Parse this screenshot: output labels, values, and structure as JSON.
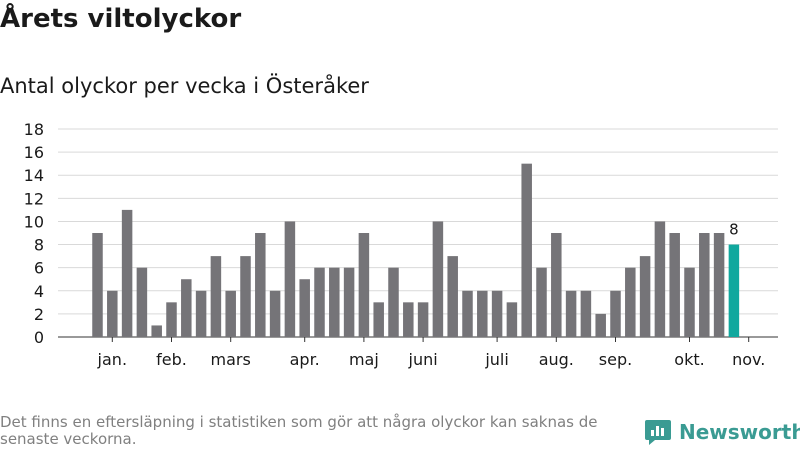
{
  "header": {
    "title": "Årets viltolyckor",
    "subtitle": "Antal olyckor per vecka i Österåker"
  },
  "footer": {
    "note": "Det finns en eftersläpning i statistiken som gör att några olyckor kan saknas de senaste veckorna.",
    "brand": "Newsworthy"
  },
  "colors": {
    "bar": "#757478",
    "highlight": "#10a89e",
    "grid": "#d9d9d9",
    "brand": "#3a9b93"
  },
  "chart_data": {
    "type": "bar",
    "values": [
      9,
      4,
      11,
      6,
      1,
      3,
      5,
      4,
      7,
      4,
      7,
      9,
      4,
      10,
      5,
      6,
      6,
      6,
      9,
      3,
      6,
      3,
      3,
      10,
      7,
      4,
      4,
      4,
      3,
      15,
      6,
      9,
      4,
      4,
      2,
      4,
      6,
      7,
      10,
      9,
      6,
      9,
      9,
      8
    ],
    "highlight_last": true,
    "data_labels": [
      {
        "index": 43,
        "text": "8"
      }
    ],
    "month_labels": [
      {
        "label": "jan.",
        "position": 1
      },
      {
        "label": "feb.",
        "position": 5
      },
      {
        "label": "mars",
        "position": 9
      },
      {
        "label": "apr.",
        "position": 14
      },
      {
        "label": "maj",
        "position": 18
      },
      {
        "label": "juni",
        "position": 22
      },
      {
        "label": "juli",
        "position": 27
      },
      {
        "label": "aug.",
        "position": 31
      },
      {
        "label": "sep.",
        "position": 35
      },
      {
        "label": "okt.",
        "position": 40
      },
      {
        "label": "nov.",
        "position": 44
      }
    ],
    "y_ticks": [
      0,
      2,
      4,
      6,
      8,
      10,
      12,
      14,
      16,
      18
    ],
    "ylim": [
      0,
      18
    ],
    "grid": true
  }
}
